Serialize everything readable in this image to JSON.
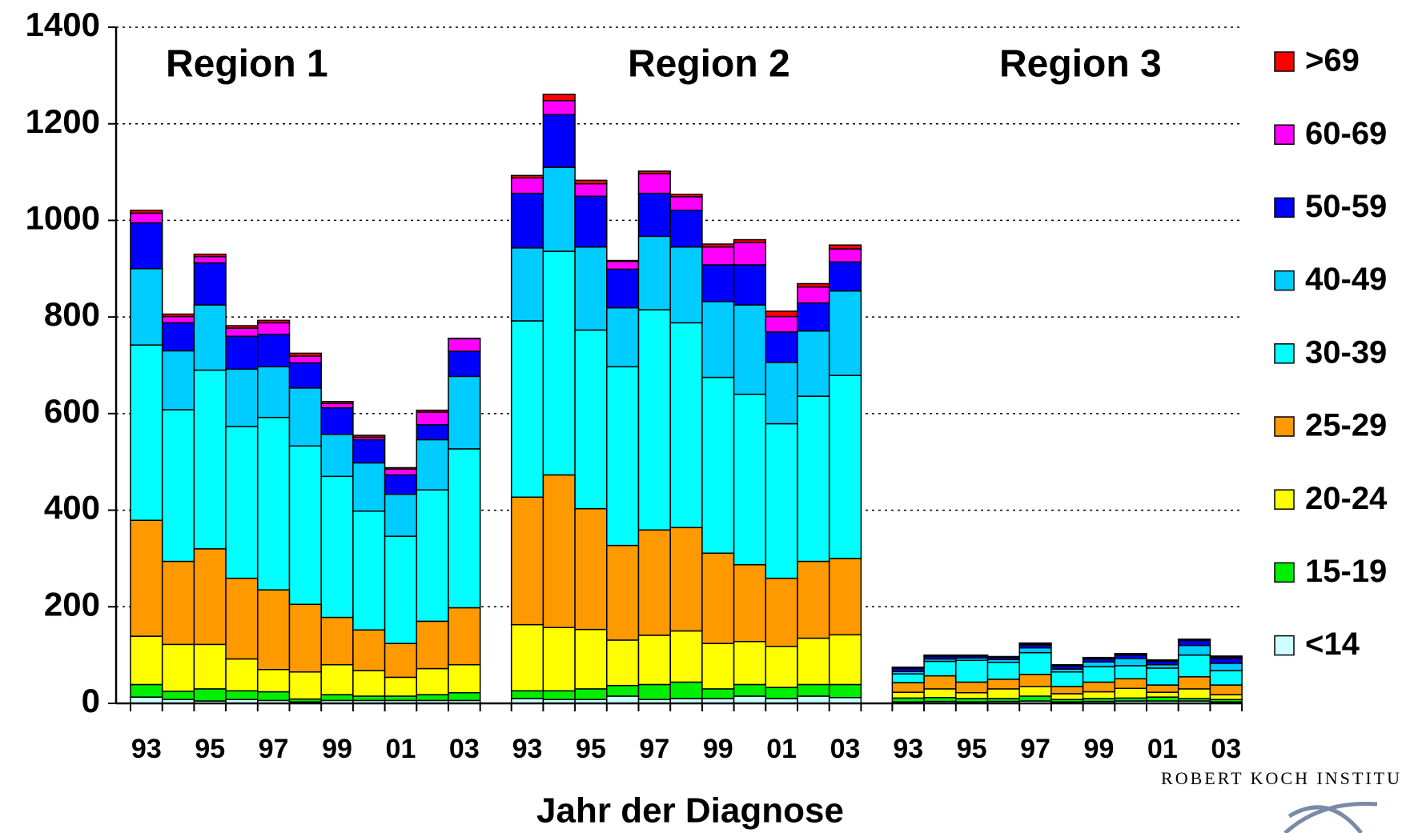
{
  "chart_data": {
    "type": "stacked_bar",
    "annotations": [
      "Region 1",
      "Region 2",
      "Region 3"
    ],
    "x_label": "Jahr der Diagnose",
    "logo_text": "ROBERT KOCH INSTITU",
    "categories": [
      "93",
      null,
      "95",
      null,
      "97",
      null,
      "99",
      null,
      "01",
      null,
      "03",
      "93",
      null,
      "95",
      null,
      "97",
      null,
      "99",
      null,
      "01",
      null,
      "03",
      "93",
      null,
      "95",
      null,
      "97",
      null,
      "99",
      null,
      "01",
      null,
      "03"
    ],
    "ylim": [
      0,
      1400
    ],
    "yticks": [
      0,
      200,
      400,
      600,
      800,
      1000,
      1200,
      1400
    ],
    "grid": true,
    "legend": "right",
    "series": [
      {
        "name": "<14",
        "color": "#ccffff",
        "values": [
          13,
          8,
          5,
          8,
          6,
          3,
          6,
          6,
          6,
          6,
          6,
          10,
          8,
          8,
          15,
          8,
          10,
          10,
          15,
          10,
          15,
          12,
          3,
          4,
          3,
          4,
          5,
          3,
          4,
          5,
          5,
          5,
          3
        ]
      },
      {
        "name": "15-19",
        "color": "#00ee00",
        "values": [
          26,
          17,
          25,
          18,
          18,
          6,
          12,
          9,
          9,
          12,
          16,
          16,
          18,
          22,
          22,
          31,
          34,
          20,
          24,
          23,
          24,
          27,
          8,
          8,
          7,
          6,
          10,
          5,
          6,
          6,
          8,
          5,
          5
        ]
      },
      {
        "name": "20-24",
        "color": "#ffff00",
        "values": [
          100,
          97,
          92,
          66,
          46,
          56,
          62,
          53,
          39,
          54,
          58,
          137,
          131,
          123,
          94,
          102,
          106,
          94,
          89,
          85,
          96,
          103,
          12,
          18,
          12,
          20,
          20,
          12,
          14,
          20,
          10,
          20,
          10
        ]
      },
      {
        "name": "25-29",
        "color": "#ff9900",
        "values": [
          240,
          172,
          198,
          167,
          165,
          140,
          98,
          84,
          70,
          98,
          118,
          264,
          316,
          250,
          196,
          218,
          214,
          187,
          159,
          141,
          159,
          158,
          20,
          27,
          22,
          20,
          25,
          15,
          20,
          20,
          15,
          25,
          20
        ]
      },
      {
        "name": "30-39",
        "color": "#00ffff",
        "values": [
          363,
          314,
          370,
          314,
          357,
          328,
          292,
          246,
          222,
          272,
          329,
          365,
          463,
          370,
          370,
          456,
          424,
          364,
          353,
          320,
          342,
          379,
          18,
          30,
          45,
          35,
          45,
          30,
          32,
          27,
          35,
          45,
          30
        ]
      },
      {
        "name": "40-49",
        "color": "#00ccff",
        "values": [
          158,
          122,
          135,
          119,
          105,
          120,
          87,
          100,
          87,
          104,
          150,
          151,
          174,
          172,
          122,
          152,
          157,
          157,
          185,
          127,
          135,
          175,
          5,
          5,
          5,
          6,
          10,
          6,
          10,
          15,
          7,
          20,
          15
        ]
      },
      {
        "name": "50-59",
        "color": "#0000ff",
        "values": [
          95,
          58,
          87,
          68,
          67,
          52,
          55,
          48,
          40,
          31,
          52,
          113,
          109,
          105,
          80,
          89,
          76,
          76,
          83,
          63,
          58,
          60,
          6,
          5,
          4,
          4,
          6,
          6,
          6,
          7,
          7,
          10,
          10
        ]
      },
      {
        "name": "60-69",
        "color": "#ff00ff",
        "values": [
          20,
          13,
          13,
          17,
          24,
          14,
          9,
          5,
          12,
          26,
          26,
          32,
          29,
          26,
          16,
          41,
          28,
          37,
          46,
          32,
          33,
          27,
          1,
          1,
          1,
          1,
          2,
          2,
          2,
          2,
          2,
          2,
          3
        ]
      },
      {
        "name": ">69",
        "color": "#ff0000",
        "values": [
          6,
          5,
          5,
          5,
          5,
          6,
          4,
          4,
          3,
          4,
          1,
          5,
          13,
          7,
          2,
          5,
          5,
          6,
          6,
          11,
          7,
          8,
          2,
          2,
          1,
          1,
          2,
          1,
          1,
          1,
          1,
          1,
          2
        ]
      }
    ]
  }
}
